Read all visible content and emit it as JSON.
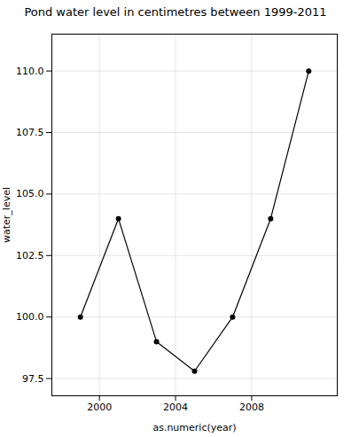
{
  "chart_data": {
    "type": "line",
    "title": "Pond water level in centimetres between 1999-2011",
    "xlabel": "as.numeric(year)",
    "ylabel": "water_level",
    "x": [
      1999,
      2001,
      2003,
      2005,
      2007,
      2009,
      2011
    ],
    "values": [
      100.0,
      104.0,
      99.0,
      97.8,
      100.0,
      104.0,
      110.0
    ],
    "color": "#000000",
    "marker": "circle",
    "xlim": [
      1997.5,
      2012.5
    ],
    "ylim": [
      96.8,
      111.5
    ],
    "xticks": [
      2000,
      2004,
      2008
    ],
    "yticks": [
      97.5,
      {
        "value": 100.0,
        "label": "100.0"
      },
      102.5,
      {
        "value": 105.0,
        "label": "105.0"
      },
      107.5,
      {
        "value": 110.0,
        "label": "110.0"
      }
    ],
    "grid": true
  }
}
